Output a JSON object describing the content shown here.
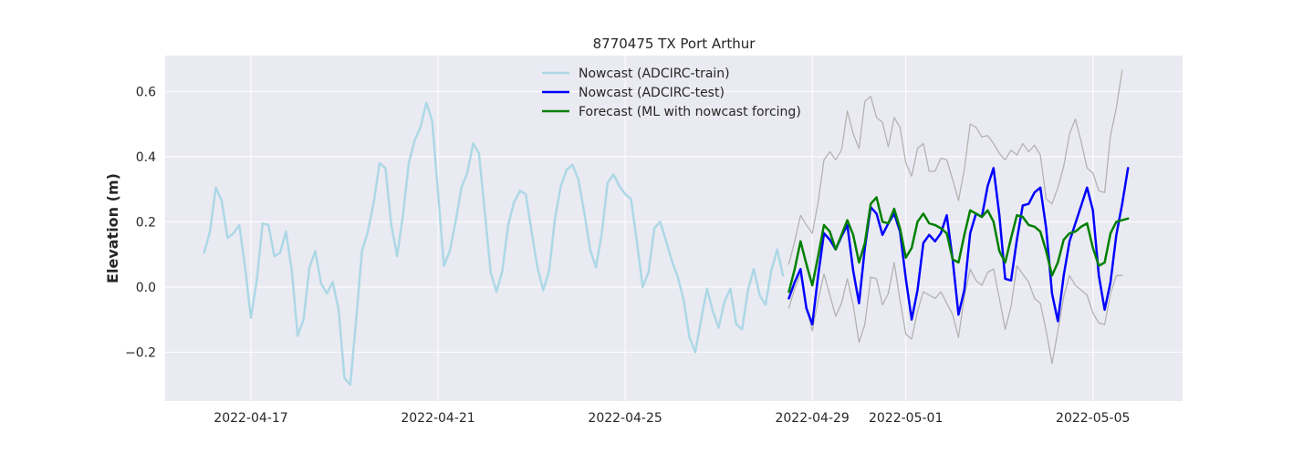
{
  "chart_data": {
    "type": "line",
    "title": "8770475 TX Port Arthur",
    "xlabel": "",
    "ylabel": "Elevation (m)",
    "x_ticks": [
      "2022-04-17",
      "2022-04-21",
      "2022-04-25",
      "2022-04-29",
      "2022-05-01",
      "2022-05-05"
    ],
    "x_tick_days": [
      1,
      5,
      9,
      13,
      15,
      19
    ],
    "y_ticks": [
      -0.2,
      0.0,
      0.2,
      0.4,
      0.6
    ],
    "y_tick_labels": [
      "−0.2",
      "0.0",
      "0.2",
      "0.4",
      "0.6"
    ],
    "xlim": [
      "2022-04-15T04:00",
      "2022-05-06T22:00"
    ],
    "ylim": [
      -0.35,
      0.71
    ],
    "grid": true,
    "legend_position": "upper center",
    "series": [
      {
        "name": "Nowcast (ADCIRC-train)",
        "color": "#add8e6",
        "x_start": "2022-04-16T00:00",
        "step_hours": 3,
        "values": [
          0.105,
          0.17,
          0.305,
          0.265,
          0.15,
          0.165,
          0.19,
          0.06,
          -0.095,
          0.02,
          0.195,
          0.19,
          0.095,
          0.105,
          0.17,
          0.05,
          -0.15,
          -0.1,
          0.06,
          0.11,
          0.01,
          -0.02,
          0.015,
          -0.07,
          -0.28,
          -0.3,
          -0.1,
          0.11,
          0.17,
          0.26,
          0.38,
          0.365,
          0.19,
          0.095,
          0.22,
          0.38,
          0.45,
          0.49,
          0.565,
          0.51,
          0.29,
          0.065,
          0.11,
          0.2,
          0.305,
          0.35,
          0.44,
          0.41,
          0.23,
          0.045,
          -0.015,
          0.05,
          0.19,
          0.26,
          0.295,
          0.285,
          0.17,
          0.06,
          -0.01,
          0.05,
          0.21,
          0.31,
          0.36,
          0.375,
          0.33,
          0.23,
          0.115,
          0.06,
          0.165,
          0.32,
          0.345,
          0.31,
          0.285,
          0.27,
          0.14,
          0.0,
          0.045,
          0.18,
          0.2,
          0.14,
          0.08,
          0.03,
          -0.04,
          -0.155,
          -0.2,
          -0.1,
          -0.005,
          -0.075,
          -0.125,
          -0.045,
          -0.005,
          -0.115,
          -0.13,
          -0.01,
          0.055,
          -0.025,
          -0.055,
          0.05,
          0.115,
          0.035
        ]
      },
      {
        "name": "Nowcast (ADCIRC-test)",
        "color": "#0000ff",
        "x_start": "2022-04-28T12:00",
        "step_hours": 3,
        "values": [
          -0.035,
          0.015,
          0.055,
          -0.065,
          -0.115,
          0.035,
          0.165,
          0.145,
          0.115,
          0.155,
          0.19,
          0.05,
          -0.05,
          0.12,
          0.245,
          0.225,
          0.16,
          0.195,
          0.225,
          0.17,
          0.025,
          -0.1,
          -0.01,
          0.135,
          0.16,
          0.14,
          0.165,
          0.22,
          0.085,
          -0.085,
          -0.01,
          0.165,
          0.225,
          0.215,
          0.31,
          0.365,
          0.22,
          0.025,
          0.02,
          0.145,
          0.25,
          0.255,
          0.29,
          0.305,
          0.18,
          -0.02,
          -0.105,
          0.035,
          0.14,
          0.195,
          0.25,
          0.305,
          0.235,
          0.035,
          -0.07,
          0.015,
          0.16,
          0.255,
          0.365
        ]
      },
      {
        "name": "Forecast (ML with nowcast forcing)",
        "color": "#008000",
        "x_start": "2022-04-28T12:00",
        "step_hours": 3,
        "values": [
          -0.015,
          0.055,
          0.14,
          0.07,
          0.005,
          0.095,
          0.19,
          0.17,
          0.115,
          0.16,
          0.205,
          0.16,
          0.075,
          0.135,
          0.255,
          0.275,
          0.2,
          0.195,
          0.24,
          0.18,
          0.09,
          0.12,
          0.2,
          0.225,
          0.195,
          0.19,
          0.18,
          0.165,
          0.085,
          0.075,
          0.16,
          0.235,
          0.225,
          0.215,
          0.235,
          0.2,
          0.11,
          0.075,
          0.15,
          0.22,
          0.215,
          0.19,
          0.185,
          0.17,
          0.11,
          0.035,
          0.075,
          0.145,
          0.165,
          0.17,
          0.185,
          0.195,
          0.12,
          0.065,
          0.075,
          0.165,
          0.2,
          0.205,
          0.21
        ]
      },
      {
        "color": "#b3b3b3",
        "x_start": "2022-04-28T12:00",
        "step_hours": 3,
        "values": [
          0.07,
          0.14,
          0.22,
          0.19,
          0.165,
          0.26,
          0.39,
          0.415,
          0.39,
          0.42,
          0.54,
          0.47,
          0.425,
          0.57,
          0.585,
          0.52,
          0.505,
          0.43,
          0.52,
          0.49,
          0.38,
          0.34,
          0.425,
          0.44,
          0.355,
          0.355,
          0.395,
          0.39,
          0.33,
          0.265,
          0.36,
          0.5,
          0.49,
          0.46,
          0.465,
          0.44,
          0.41,
          0.39,
          0.42,
          0.405,
          0.44,
          0.415,
          0.435,
          0.405,
          0.27,
          0.255,
          0.305,
          0.37,
          0.47,
          0.515,
          0.445,
          0.365,
          0.35,
          0.295,
          0.29,
          0.465,
          0.55,
          0.665
        ]
      },
      {
        "color": "#b3b3b3",
        "x_start": "2022-04-28T12:00",
        "step_hours": 3,
        "values": [
          -0.065,
          -0.005,
          0.04,
          -0.06,
          -0.135,
          -0.04,
          0.04,
          -0.025,
          -0.09,
          -0.05,
          0.025,
          -0.055,
          -0.17,
          -0.115,
          0.03,
          0.025,
          -0.055,
          -0.02,
          0.075,
          -0.04,
          -0.145,
          -0.16,
          -0.075,
          -0.015,
          -0.025,
          -0.035,
          -0.015,
          -0.05,
          -0.085,
          -0.155,
          -0.03,
          0.055,
          0.02,
          0.005,
          0.045,
          0.055,
          -0.035,
          -0.13,
          -0.06,
          0.065,
          0.04,
          0.015,
          -0.035,
          -0.05,
          -0.135,
          -0.235,
          -0.135,
          -0.03,
          0.035,
          0.005,
          -0.01,
          -0.025,
          -0.08,
          -0.11,
          -0.115,
          -0.02,
          0.035,
          0.035
        ]
      }
    ]
  }
}
